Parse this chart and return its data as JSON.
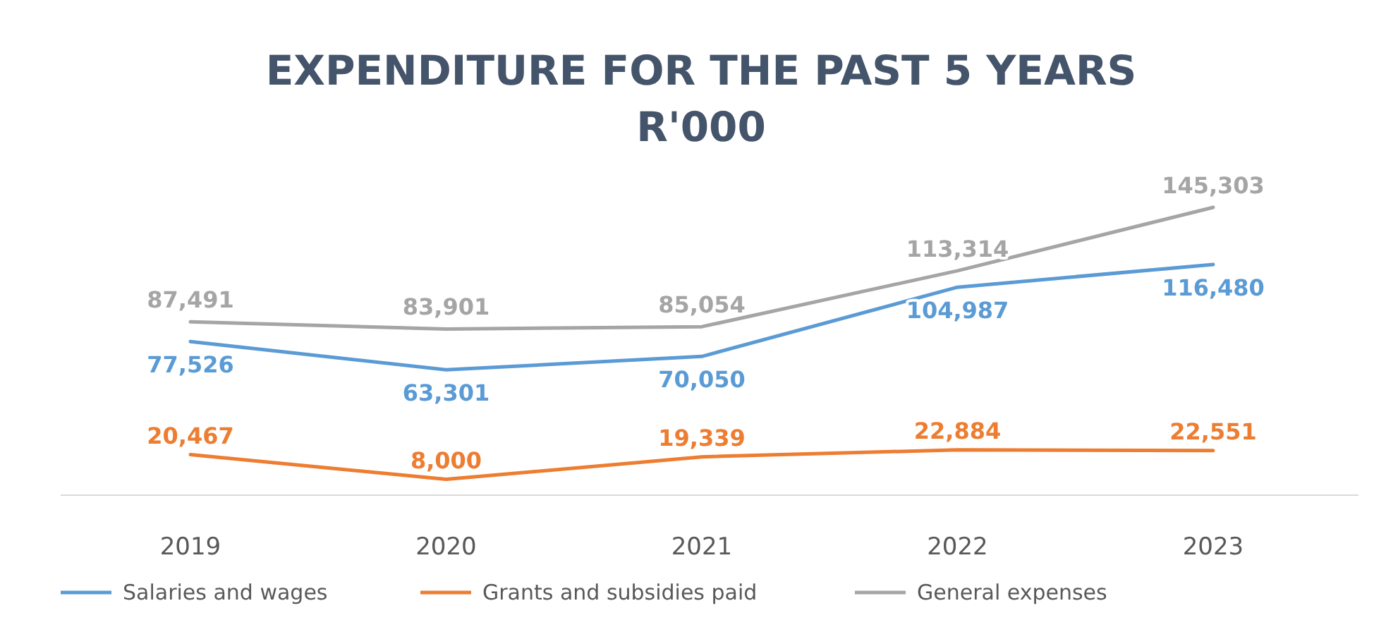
{
  "chart_data": {
    "type": "line",
    "title": "EXPENDITURE FOR THE PAST 5 YEARS",
    "subtitle": "R'000",
    "categories": [
      "2019",
      "2020",
      "2021",
      "2022",
      "2023"
    ],
    "series": [
      {
        "name": "Salaries and wages",
        "color": "#5b9bd5",
        "values": [
          77526,
          63301,
          70050,
          104987,
          116480
        ],
        "value_labels": [
          "77,526",
          "63,301",
          "70,050",
          "104,987",
          "116,480"
        ]
      },
      {
        "name": "Grants and subsidies paid",
        "color": "#ed7d31",
        "values": [
          20467,
          8000,
          19339,
          22884,
          22551
        ],
        "value_labels": [
          "20,467",
          "8,000",
          "19,339",
          "22,884",
          "22,551"
        ]
      },
      {
        "name": "General expenses",
        "color": "#a5a5a5",
        "values": [
          87491,
          83901,
          85054,
          113314,
          145303
        ],
        "value_labels": [
          "87,491",
          "83,901",
          "85,054",
          "113,314",
          "145,303"
        ]
      }
    ],
    "legend": "bottom",
    "marker": "none",
    "line_style": "solid"
  }
}
